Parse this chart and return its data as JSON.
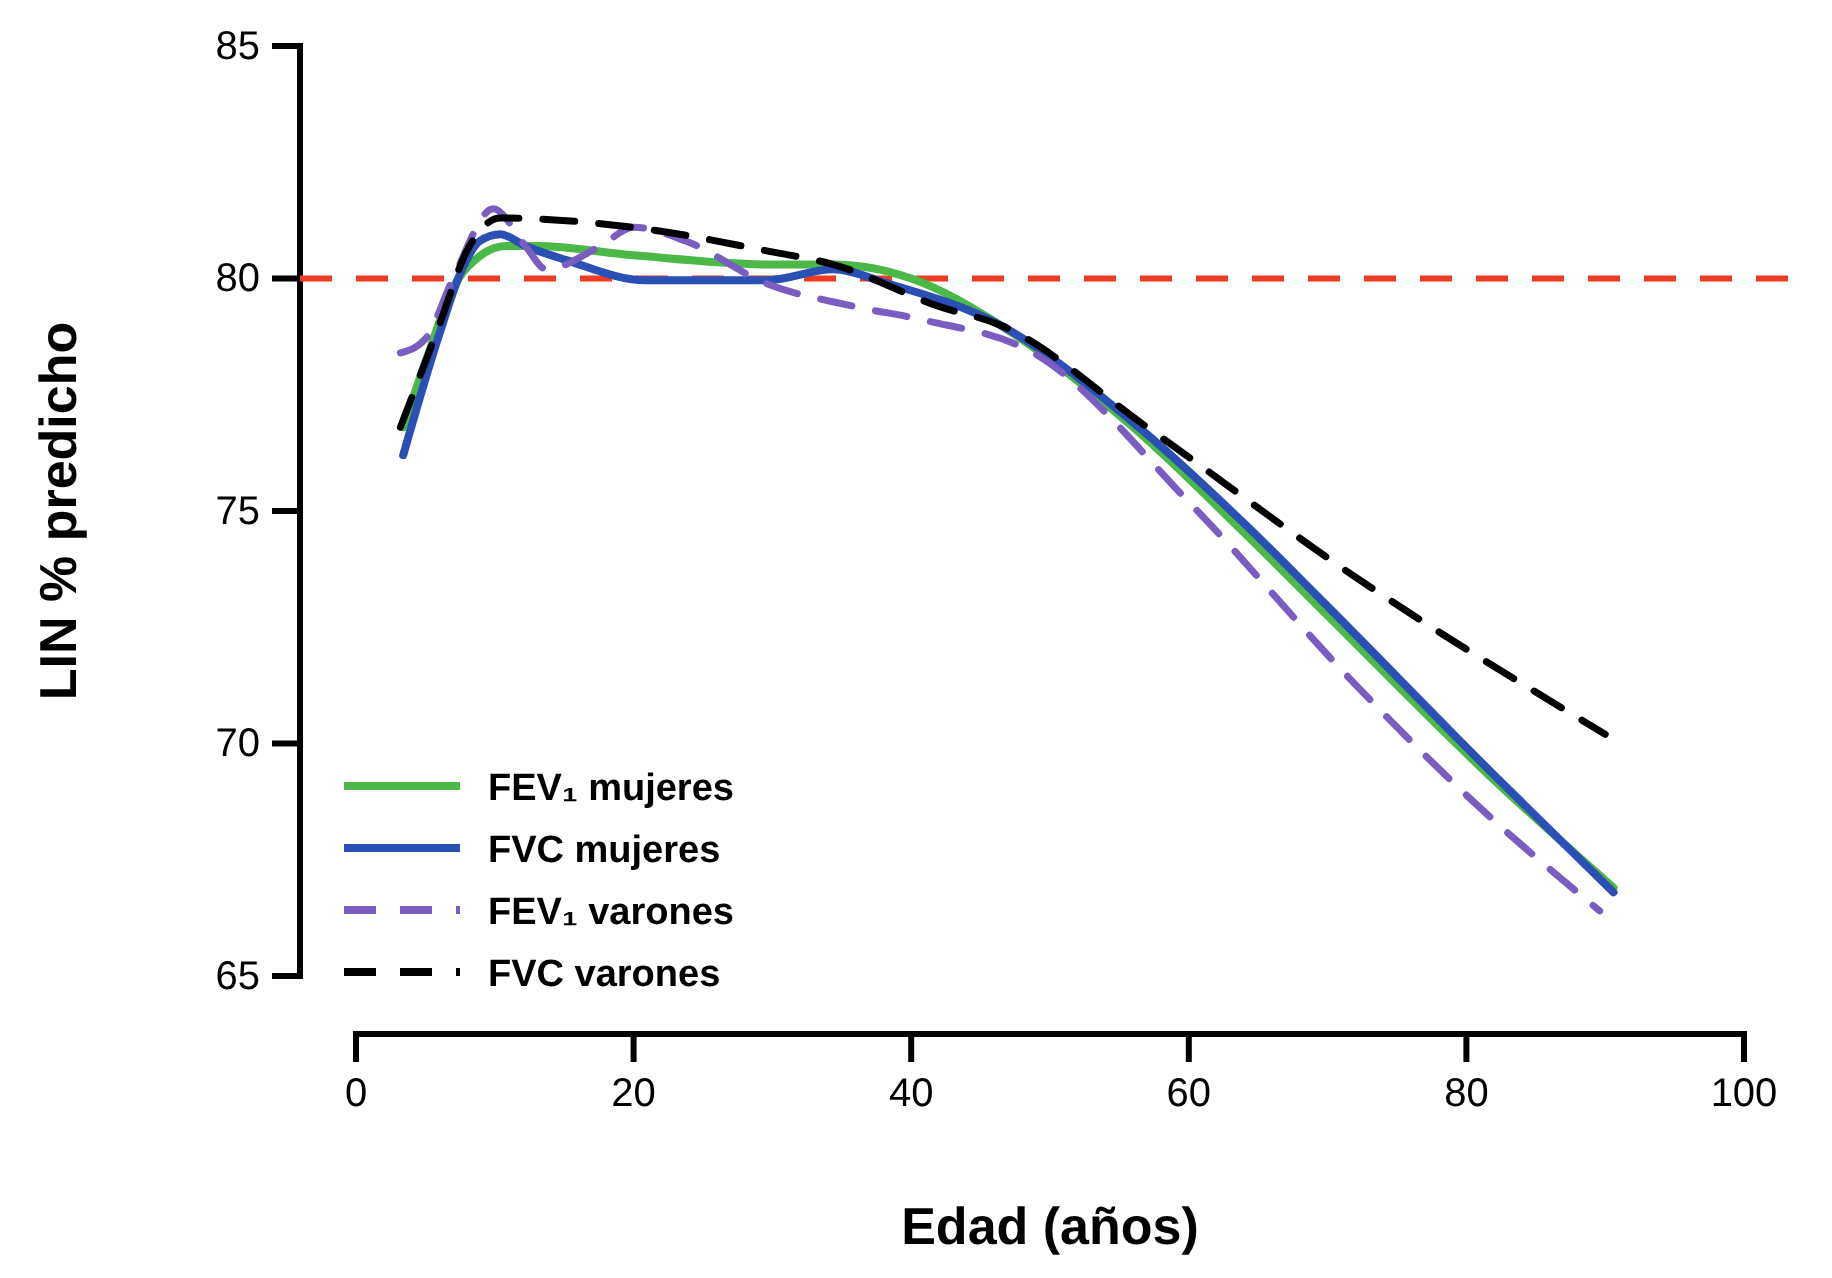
{
  "chart_data": {
    "type": "line",
    "xlabel": "Edad (años)",
    "ylabel": "LIN % predicho",
    "xlim": [
      0,
      100
    ],
    "xticks": [
      0,
      20,
      40,
      60,
      80,
      100
    ],
    "ylim": [
      65,
      85
    ],
    "yticks": [
      65,
      70,
      75,
      80,
      85
    ],
    "grid": false,
    "legend": "bottom left",
    "marker": "none",
    "series": [
      {
        "name": "FEV₁ mujeres",
        "color": "#4cb848",
        "line_style": "solid",
        "x": [
          3.4,
          5,
          7,
          9,
          10.8,
          13,
          20,
          30,
          34.4,
          40,
          46.4,
          56,
          64.1,
          69.5,
          82.4,
          90.6
        ],
        "values": [
          76.8,
          78.2,
          79.8,
          80.5,
          80.7,
          80.7,
          80.5,
          80.3,
          80.3,
          80,
          79,
          76.8,
          74.5,
          72.9,
          69.1,
          66.9
        ]
      },
      {
        "name": "FVC mujeres",
        "color": "#2a4fb5",
        "line_style": "solid",
        "x": [
          3.4,
          6,
          7.5,
          8.9,
          10.4,
          12.2,
          15.1,
          20.9,
          29.5,
          34.4,
          38.2,
          46.4,
          56,
          64.1,
          69.5,
          82.4,
          90.6
        ],
        "values": [
          76.2,
          78.8,
          80.1,
          80.8,
          80.95,
          80.7,
          80.4,
          79.96,
          79.96,
          80.2,
          79.9,
          79,
          76.9,
          74.7,
          73.1,
          69.2,
          66.8
        ]
      },
      {
        "name": "FEV₁ varones",
        "color": "#7b5cc0",
        "line_style": "dashed",
        "x": [
          3.2,
          5,
          7,
          9.9,
          12.2,
          13.7,
          17.6,
          20,
          23.8,
          29.5,
          35.9,
          41,
          48.8,
          60.3,
          71.9,
          80.5,
          89.6
        ],
        "values": [
          78.4,
          78.7,
          80,
          81.5,
          80.7,
          80.2,
          80.7,
          81.1,
          80.8,
          79.9,
          79.4,
          79.1,
          78.4,
          75.1,
          71.3,
          68.75,
          66.4
        ]
      },
      {
        "name": "FVC varones",
        "color": "#000000",
        "line_style": "dashed",
        "x": [
          3.2,
          6,
          8,
          10.4,
          20,
          29.5,
          34.4,
          42,
          46.4,
          57,
          71.9,
          90
        ],
        "values": [
          76.8,
          79,
          80.6,
          81.3,
          81.1,
          80.6,
          80.3,
          79.4,
          79,
          76.8,
          73.6,
          70.2
        ]
      }
    ],
    "ref_lines": [
      {
        "axis": "y",
        "value": 80,
        "color": "#f03c20",
        "line_style": "dashed"
      }
    ]
  }
}
